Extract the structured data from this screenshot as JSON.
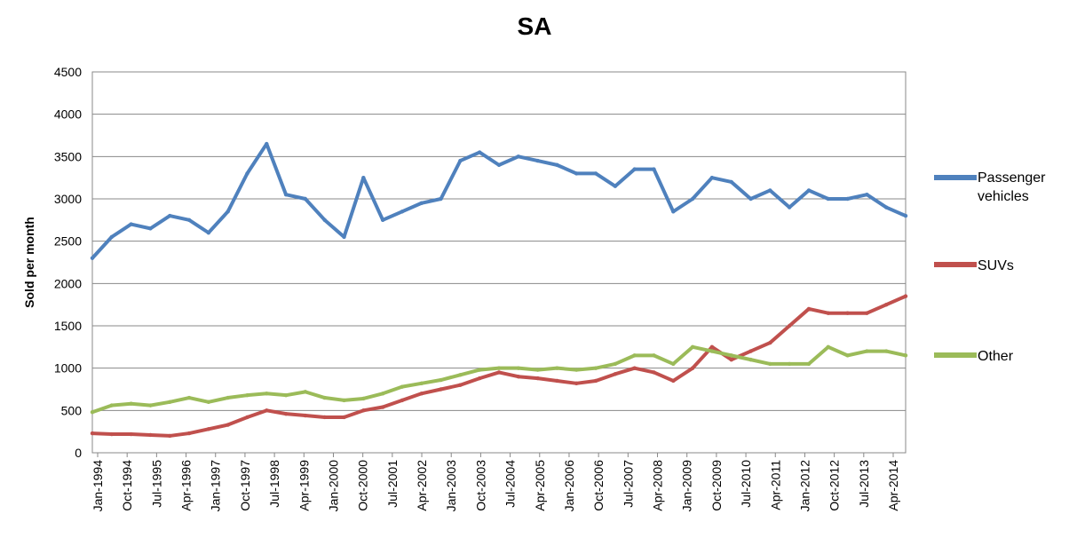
{
  "chart_data": {
    "type": "line",
    "title": "SA",
    "xlabel": "",
    "ylabel": "Sold per month",
    "ylim": [
      0,
      4500
    ],
    "yticks": [
      0,
      500,
      1000,
      1500,
      2000,
      2500,
      3000,
      3500,
      4000,
      4500
    ],
    "grid": "horizontal",
    "legend_position": "right",
    "x_tick_labels": [
      "Jan-1994",
      "Oct-1994",
      "Jul-1995",
      "Apr-1996",
      "Jan-1997",
      "Oct-1997",
      "Jul-1998",
      "Apr-1999",
      "Jan-2000",
      "Oct-2000",
      "Jul-2001",
      "Apr-2002",
      "Jan-2003",
      "Oct-2003",
      "Jul-2004",
      "Apr-2005",
      "Jan-2006",
      "Oct-2006",
      "Jul-2007",
      "Apr-2008",
      "Jan-2009",
      "Oct-2009",
      "Jul-2010",
      "Apr-2011",
      "Jan-2012",
      "Oct-2012",
      "Jul-2013",
      "Apr-2014"
    ],
    "x": [
      "Jan-1994",
      "Jul-1994",
      "Jan-1995",
      "Jul-1995",
      "Jan-1996",
      "Jul-1996",
      "Jan-1997",
      "Jul-1997",
      "Jan-1998",
      "Jul-1998",
      "Jan-1999",
      "Jul-1999",
      "Jan-2000",
      "Jul-2000",
      "Jan-2001",
      "Jul-2001",
      "Jan-2002",
      "Jul-2002",
      "Jan-2003",
      "Jul-2003",
      "Jan-2004",
      "Jul-2004",
      "Jan-2005",
      "Jul-2005",
      "Jan-2006",
      "Jul-2006",
      "Jan-2007",
      "Jul-2007",
      "Jan-2008",
      "Jul-2008",
      "Jan-2009",
      "Jul-2009",
      "Jan-2010",
      "Jul-2010",
      "Jan-2011",
      "Jul-2011",
      "Jan-2012",
      "Jul-2012",
      "Jan-2013",
      "Jul-2013",
      "Jan-2014",
      "Jul-2014",
      "Dec-2014"
    ],
    "series": [
      {
        "name": "Passenger vehicles",
        "color": "#4F81BD",
        "values": [
          2300,
          2550,
          2700,
          2650,
          2800,
          2750,
          2600,
          2850,
          3300,
          3650,
          3050,
          3000,
          2750,
          2550,
          3250,
          2750,
          2850,
          2950,
          3000,
          3450,
          3550,
          3400,
          3500,
          3450,
          3400,
          3300,
          3300,
          3150,
          3350,
          3350,
          2850,
          3000,
          3250,
          3200,
          3000,
          3100,
          2900,
          3100,
          3000,
          3000,
          3050,
          2900,
          2800
        ]
      },
      {
        "name": "SUVs",
        "color": "#C0504D",
        "values": [
          230,
          220,
          220,
          210,
          200,
          230,
          280,
          330,
          420,
          500,
          460,
          440,
          420,
          420,
          500,
          540,
          620,
          700,
          750,
          800,
          880,
          950,
          900,
          880,
          850,
          820,
          850,
          930,
          1000,
          950,
          850,
          1000,
          1250,
          1100,
          1200,
          1300,
          1500,
          1700,
          1650,
          1650,
          1650,
          1750,
          1850
        ]
      },
      {
        "name": "Other",
        "color": "#9BBB59",
        "values": [
          480,
          560,
          580,
          560,
          600,
          650,
          600,
          650,
          680,
          700,
          680,
          720,
          650,
          620,
          640,
          700,
          780,
          820,
          860,
          920,
          980,
          1000,
          1000,
          980,
          1000,
          980,
          1000,
          1050,
          1150,
          1150,
          1050,
          1250,
          1200,
          1150,
          1100,
          1050,
          1050,
          1050,
          1250,
          1150,
          1200,
          1200,
          1150
        ]
      }
    ]
  }
}
